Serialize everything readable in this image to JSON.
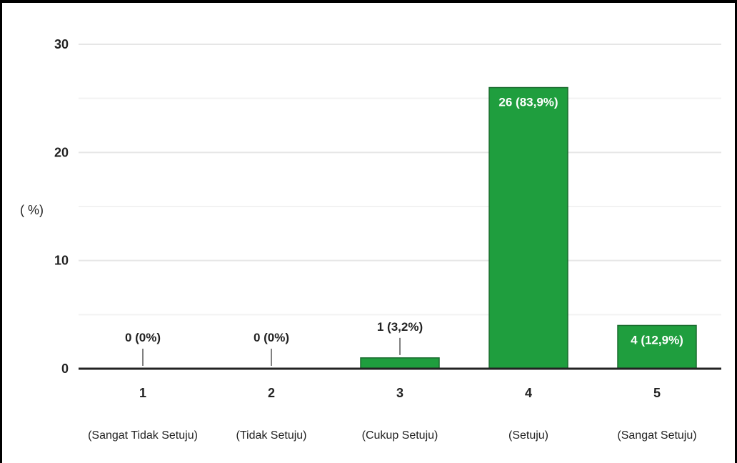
{
  "chart_data": {
    "type": "bar",
    "ylabel": "( %)",
    "ylim": [
      0,
      30
    ],
    "yticks": [
      0,
      10,
      20,
      30
    ],
    "grid": true,
    "bar_color": "#1f9e3e",
    "bar_edge_color": "#1a6b2e",
    "categories": [
      "1",
      "2",
      "3",
      "4",
      "5"
    ],
    "category_descriptions": [
      "(Sangat Tidak Setuju)",
      "(Tidak Setuju)",
      "(Cukup  Setuju)",
      "(Setuju)",
      "(Sangat  Setuju)"
    ],
    "values": [
      0,
      0,
      1,
      26,
      4
    ],
    "data_labels": [
      "0 (0%)",
      "0 (0%)",
      "1 (3,2%)",
      "26 (83,9%)",
      "4 (12,9%)"
    ]
  }
}
